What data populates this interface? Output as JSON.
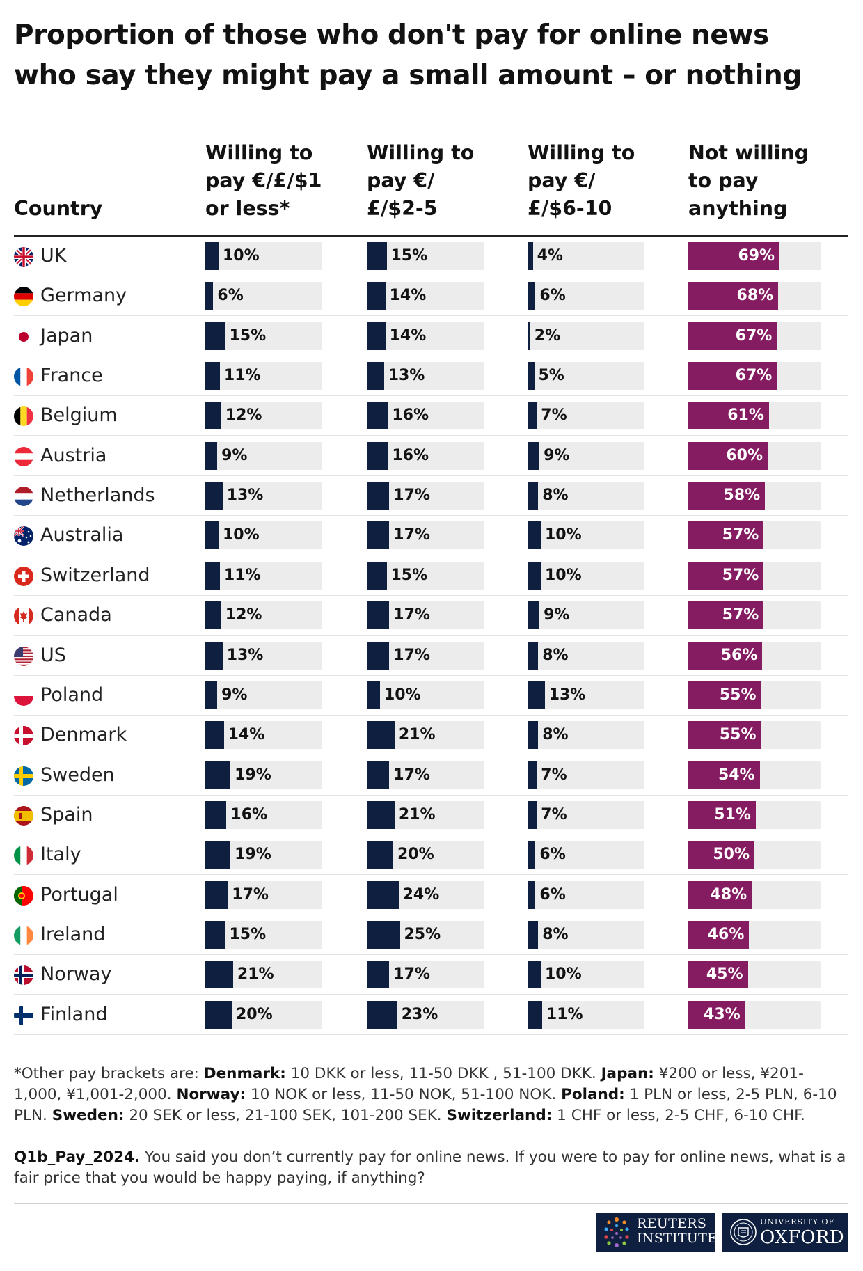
{
  "title": "Proportion of those who don't pay for online news who say they might pay a small amount – or nothing",
  "columns": {
    "country": "Country",
    "c1": [
      "Willing to",
      "pay €/£/$1",
      "or less*"
    ],
    "c2": [
      "Willing to",
      "pay €/",
      "£/$2-5"
    ],
    "c3": [
      "Willing to",
      "pay €/",
      "£/$6-10"
    ],
    "c4": [
      "Not willing",
      "to pay",
      "anything"
    ]
  },
  "colors": {
    "willing_bar": "#0f1f3f",
    "not_willing_bar": "#851c62",
    "track": "#ececec"
  },
  "chart_data": {
    "type": "bar",
    "orientation": "horizontal",
    "categories": [
      "UK",
      "Germany",
      "Japan",
      "France",
      "Belgium",
      "Austria",
      "Netherlands",
      "Australia",
      "Switzerland",
      "Canada",
      "US",
      "Poland",
      "Denmark",
      "Sweden",
      "Spain",
      "Italy",
      "Portugal",
      "Ireland",
      "Norway",
      "Finland"
    ],
    "flags": [
      "uk",
      "germany",
      "japan",
      "france",
      "belgium",
      "austria",
      "netherlands",
      "australia",
      "switzerland",
      "canada",
      "us",
      "poland",
      "denmark",
      "sweden",
      "spain",
      "italy",
      "portugal",
      "ireland",
      "norway",
      "finland"
    ],
    "series": [
      {
        "name": "Willing to pay €/£/$1 or less*",
        "values": [
          10,
          6,
          15,
          11,
          12,
          9,
          13,
          10,
          11,
          12,
          13,
          9,
          14,
          19,
          16,
          19,
          17,
          15,
          21,
          20
        ]
      },
      {
        "name": "Willing to pay €/£/$2-5",
        "values": [
          15,
          14,
          14,
          13,
          16,
          16,
          17,
          17,
          15,
          17,
          17,
          10,
          21,
          17,
          21,
          20,
          24,
          25,
          17,
          23
        ]
      },
      {
        "name": "Willing to pay €/£/$6-10",
        "values": [
          4,
          6,
          2,
          5,
          7,
          9,
          8,
          10,
          10,
          9,
          8,
          13,
          8,
          7,
          7,
          6,
          6,
          8,
          10,
          11
        ]
      },
      {
        "name": "Not willing to pay anything",
        "values": [
          69,
          68,
          67,
          67,
          61,
          60,
          58,
          57,
          57,
          57,
          56,
          55,
          55,
          54,
          51,
          50,
          48,
          46,
          45,
          43
        ]
      }
    ],
    "unit": "%",
    "xlim": [
      0,
      100
    ]
  },
  "footnote": {
    "intro": "*Other pay brackets are: ",
    "items": [
      {
        "label": "Denmark:",
        "text": " 10 DKK or less, 11-50 DKK , 51-100 DKK. "
      },
      {
        "label": "Japan:",
        "text": " ¥200 or less, ¥201-1,000, ¥1,001-2,000. "
      },
      {
        "label": "Norway:",
        "text": " 10 NOK or less, 11-50 NOK, 51-100 NOK. "
      },
      {
        "label": "Poland:",
        "text": " 1 PLN or less, 2-5 PLN, 6-10 PLN. "
      },
      {
        "label": "Sweden:",
        "text": " 20 SEK or less, 21-100 SEK, 101-200 SEK. "
      },
      {
        "label": "Switzerland:",
        "text": " 1 CHF or less, 2-5 CHF, 6-10 CHF."
      }
    ]
  },
  "question": {
    "code": "Q1b_Pay_2024.",
    "text": " You said you don’t currently pay for online news. If you were to pay for online news, what is a fair price that you would be happy paying, if anything?"
  },
  "logos": {
    "reuters": [
      "REUTERS",
      "INSTITUTE"
    ],
    "oxford": [
      "UNIVERSITY OF",
      "OXFORD"
    ]
  }
}
